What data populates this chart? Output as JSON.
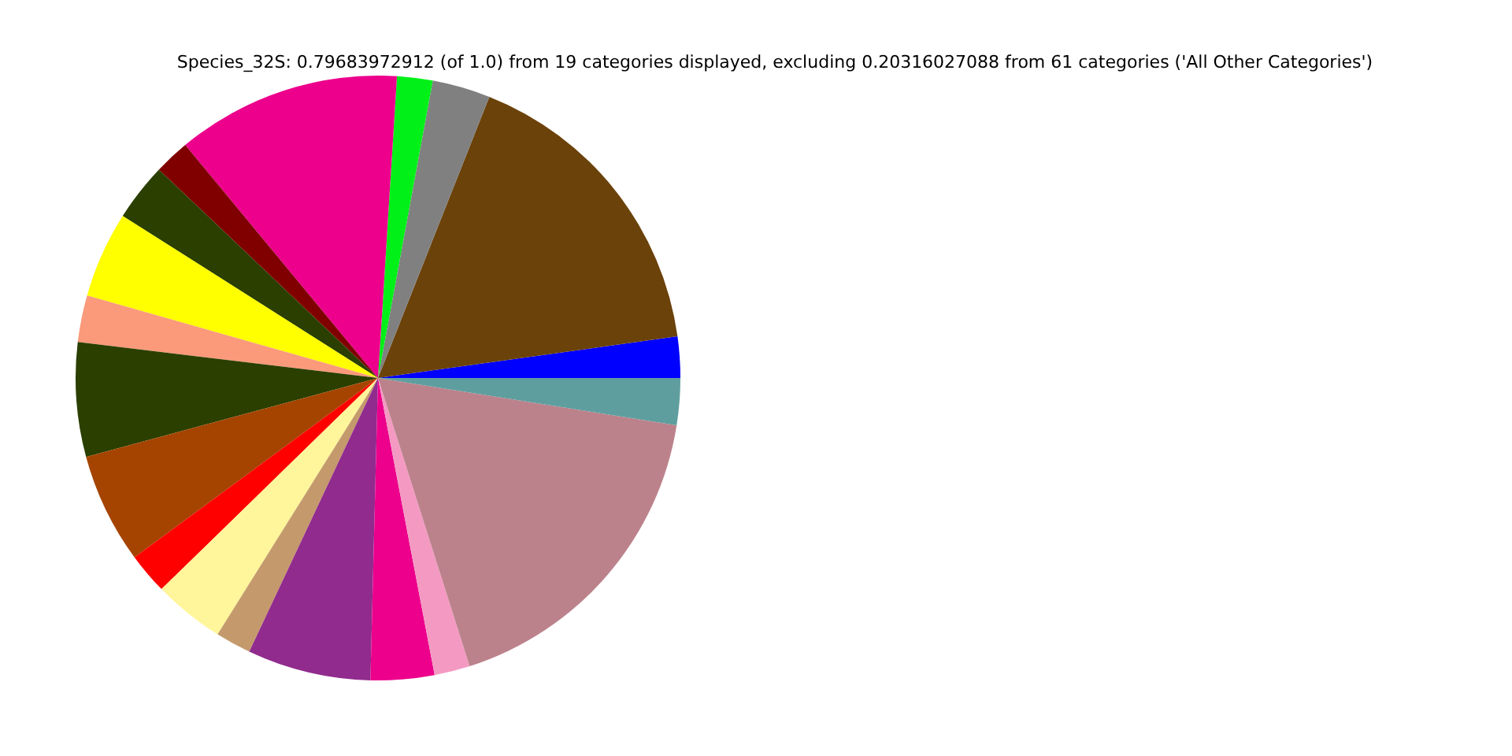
{
  "chart_data": {
    "type": "pie",
    "title": "Species_32S: 0.79683972912 (of 1.0) from 19 categories displayed, excluding 0.20316027088 from 61 categories ('All Other Categories')",
    "categories": [
      null,
      null,
      null,
      null,
      null,
      null,
      null,
      null,
      null,
      null,
      null,
      null,
      null,
      null,
      null,
      null,
      null,
      null,
      null
    ],
    "values": [
      2.2,
      16.8,
      3.1,
      1.9,
      12.0,
      1.9,
      3.1,
      4.6,
      2.5,
      6.1,
      5.9,
      2.2,
      3.8,
      1.9,
      6.6,
      3.4,
      1.9,
      17.6,
      2.5
    ],
    "colors": [
      "#0000ff",
      "#6b420a",
      "#808080",
      "#00f018",
      "#ec008c",
      "#800000",
      "#2a3f00",
      "#ffff00",
      "#fa9a7a",
      "#2a3f00",
      "#a54400",
      "#ff0000",
      "#fff59a",
      "#c49a6c",
      "#912b8e",
      "#ec008c",
      "#f49ac2",
      "#bc828c",
      "#5f9e9e"
    ]
  }
}
